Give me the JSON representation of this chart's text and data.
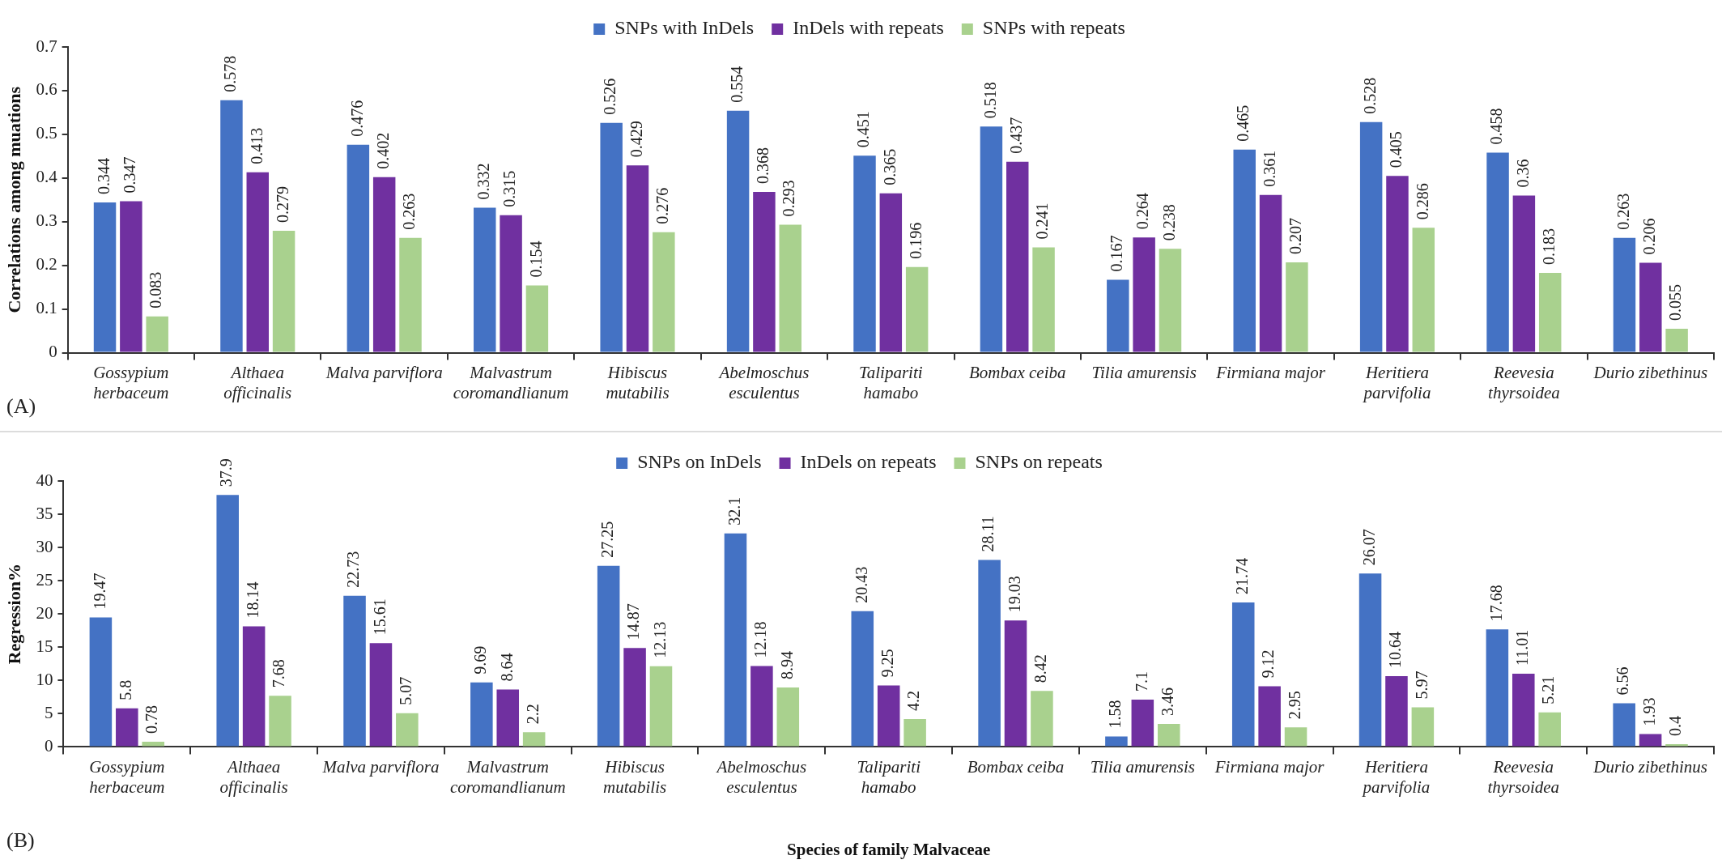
{
  "chart_data": [
    {
      "type": "bar",
      "ylabel": "Correlations among muations",
      "categories": [
        "Gossypium herbaceum",
        "Althaea officinalis",
        "Malva parviflora",
        "Malvastrum coromandlianum",
        "Hibiscus mutabilis",
        "Abelmoschus esculentus",
        "Talipariti hamabo",
        "Bombax ceiba",
        "Tilia amurensis",
        "Firmiana major",
        "Heritiera parvifolia",
        "Reevesia thyrsoidea",
        "Durio zibethinus"
      ],
      "series": [
        {
          "name": "SNPs with InDels",
          "color": "#4472c4",
          "values": [
            0.344,
            0.578,
            0.476,
            0.332,
            0.526,
            0.554,
            0.451,
            0.518,
            0.167,
            0.465,
            0.528,
            0.458,
            0.263
          ]
        },
        {
          "name": "InDels with repeats",
          "color": "#7030a0",
          "values": [
            0.347,
            0.413,
            0.402,
            0.315,
            0.429,
            0.368,
            0.365,
            0.437,
            0.264,
            0.361,
            0.405,
            0.36,
            0.206
          ]
        },
        {
          "name": "SNPs with repeats",
          "color": "#a9d18e",
          "values": [
            0.083,
            0.279,
            0.263,
            0.154,
            0.276,
            0.293,
            0.196,
            0.241,
            0.238,
            0.207,
            0.286,
            0.183,
            0.055
          ]
        }
      ],
      "ylim": [
        0,
        0.7
      ],
      "yticks": [
        0,
        0.1,
        0.2,
        0.3,
        0.4,
        0.5,
        0.6,
        0.7
      ],
      "grid": false,
      "legend": "top",
      "data_labels": true,
      "annotations": [
        "(A)"
      ]
    },
    {
      "type": "bar",
      "ylabel": "Regression%",
      "xlabel": "Species of family Malvaceae",
      "categories": [
        "Gossypium herbaceum",
        "Althaea officinalis",
        "Malva parviflora",
        "Malvastrum coromandlianum",
        "Hibiscus mutabilis",
        "Abelmoschus esculentus",
        "Talipariti hamabo",
        "Bombax ceiba",
        "Tilia amurensis",
        "Firmiana major",
        "Heritiera parvifolia",
        "Reevesia thyrsoidea",
        "Durio zibethinus"
      ],
      "series": [
        {
          "name": "SNPs on InDels",
          "color": "#4472c4",
          "values": [
            19.47,
            37.9,
            22.73,
            9.69,
            27.25,
            32.1,
            20.43,
            28.11,
            1.58,
            21.74,
            26.07,
            17.68,
            6.56
          ]
        },
        {
          "name": "InDels on repeats",
          "color": "#7030a0",
          "values": [
            5.8,
            18.14,
            15.61,
            8.64,
            14.87,
            12.18,
            9.25,
            19.03,
            7.1,
            9.12,
            10.64,
            11.01,
            1.93
          ]
        },
        {
          "name": "SNPs on repeats",
          "color": "#a9d18e",
          "values": [
            0.78,
            7.68,
            5.07,
            2.2,
            12.13,
            8.94,
            4.2,
            8.42,
            3.46,
            2.95,
            5.97,
            5.21,
            0.4
          ]
        }
      ],
      "ylim": [
        0,
        40
      ],
      "yticks": [
        0,
        5,
        10,
        15,
        20,
        25,
        30,
        35,
        40
      ],
      "grid": false,
      "legend": "top",
      "data_labels": true,
      "annotations": [
        "(B)"
      ]
    }
  ]
}
